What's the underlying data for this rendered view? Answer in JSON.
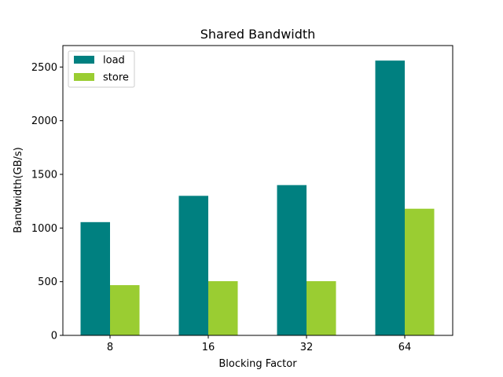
{
  "chart_data": {
    "type": "bar",
    "title": "Shared Bandwidth",
    "xlabel": "Blocking Factor",
    "ylabel": "Bandwidth(GB/s)",
    "categories": [
      "8",
      "16",
      "32",
      "64"
    ],
    "series": [
      {
        "name": "load",
        "color": "#008080",
        "values": [
          1055,
          1300,
          1400,
          2560
        ]
      },
      {
        "name": "store",
        "color": "#9acd32",
        "values": [
          468,
          505,
          505,
          1180
        ]
      }
    ],
    "ylim": [
      0,
      2700
    ],
    "yticks": [
      0,
      500,
      1000,
      1500,
      2000,
      2500
    ],
    "grid": false,
    "legend_position": "top-left"
  }
}
